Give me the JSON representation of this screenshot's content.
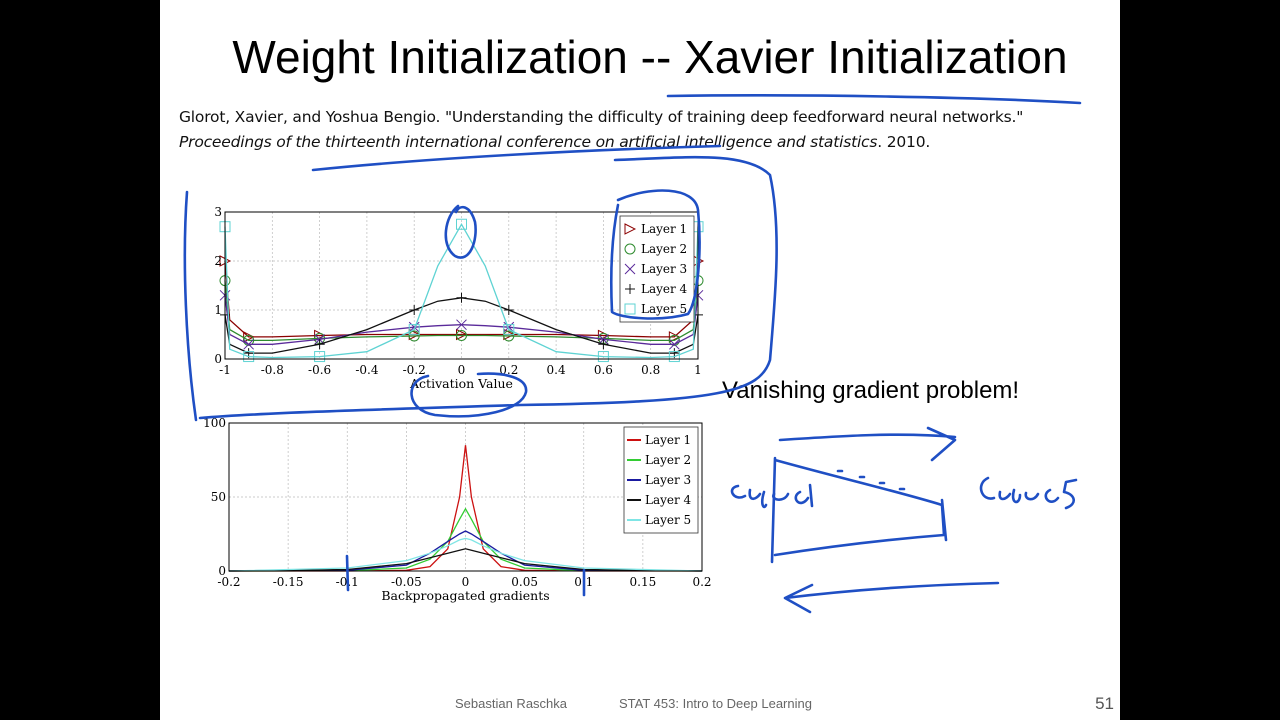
{
  "title": "Weight Initialization -- Xavier Initialization",
  "citation": {
    "line1": "Glorot, Xavier, and Yoshua Bengio. \"Understanding the difficulty of training deep feedforward neural networks.\"",
    "venue": "Proceedings of the thirteenth international conference on artificial intelligence and statistics",
    "year": ". 2010."
  },
  "annotations": {
    "vanishing": "Vanishing gradient problem!",
    "handwritten": [
      "Layer 1",
      "Layer 5"
    ]
  },
  "footer": {
    "author": "Sebastian Raschka",
    "course": "STAT 453: Intro to Deep Learning",
    "page": "51"
  },
  "chart_data": [
    {
      "type": "line",
      "xlabel": "Activation Value",
      "ylabel": "",
      "xlim": [
        -1,
        1
      ],
      "ylim": [
        0,
        3
      ],
      "x_ticks": [
        "-1",
        "-0.8",
        "-0.6",
        "-0.4",
        "-0.2",
        "0",
        "0.2",
        "0.4",
        "0.6",
        "0.8",
        "1"
      ],
      "y_ticks": [
        "0",
        "1",
        "2",
        "3"
      ],
      "grid": true,
      "legend": "top-right",
      "x": [
        -1,
        -0.98,
        -0.9,
        -0.8,
        -0.6,
        -0.4,
        -0.2,
        -0.1,
        0,
        0.1,
        0.2,
        0.4,
        0.6,
        0.8,
        0.9,
        0.98,
        1
      ],
      "series": [
        {
          "name": "Layer 1",
          "color": "#8b0000",
          "marker": "triangle-right",
          "values": [
            2.0,
            0.8,
            0.45,
            0.45,
            0.48,
            0.5,
            0.5,
            0.5,
            0.5,
            0.5,
            0.5,
            0.5,
            0.48,
            0.45,
            0.45,
            0.8,
            2.0
          ]
        },
        {
          "name": "Layer 2",
          "color": "#2e8b2e",
          "marker": "circle",
          "values": [
            1.6,
            0.6,
            0.38,
            0.38,
            0.42,
            0.45,
            0.47,
            0.48,
            0.48,
            0.48,
            0.47,
            0.45,
            0.42,
            0.38,
            0.38,
            0.6,
            1.6
          ]
        },
        {
          "name": "Layer 3",
          "color": "#5a2a9a",
          "marker": "x",
          "values": [
            1.3,
            0.5,
            0.3,
            0.3,
            0.4,
            0.55,
            0.65,
            0.68,
            0.7,
            0.68,
            0.65,
            0.55,
            0.4,
            0.3,
            0.3,
            0.5,
            1.3
          ]
        },
        {
          "name": "Layer 4",
          "color": "#111111",
          "marker": "plus",
          "values": [
            0.9,
            0.3,
            0.12,
            0.12,
            0.3,
            0.6,
            1.0,
            1.18,
            1.25,
            1.18,
            1.0,
            0.6,
            0.3,
            0.12,
            0.12,
            0.3,
            0.9
          ]
        },
        {
          "name": "Layer 5",
          "color": "#5fd3d3",
          "marker": "square",
          "values": [
            2.7,
            0.2,
            0.05,
            0.03,
            0.05,
            0.15,
            0.6,
            1.9,
            2.75,
            1.9,
            0.6,
            0.15,
            0.05,
            0.03,
            0.05,
            0.2,
            2.7
          ]
        }
      ]
    },
    {
      "type": "line",
      "xlabel": "Backpropagated gradients",
      "ylabel": "",
      "xlim": [
        -0.2,
        0.2
      ],
      "ylim": [
        0,
        100
      ],
      "x_ticks": [
        "-0.2",
        "-0.15",
        "-0.1",
        "-0.05",
        "0",
        "0.05",
        "0.1",
        "0.15",
        "0.2"
      ],
      "y_ticks": [
        "0",
        "50",
        "100"
      ],
      "grid": true,
      "legend": "top-right",
      "x": [
        -0.2,
        -0.1,
        -0.05,
        -0.03,
        -0.015,
        -0.005,
        0,
        0.005,
        0.015,
        0.03,
        0.05,
        0.1,
        0.2
      ],
      "series": [
        {
          "name": "Layer 1",
          "color": "#cc1111",
          "values": [
            0,
            0,
            0.5,
            3,
            15,
            50,
            85,
            50,
            15,
            3,
            0.5,
            0,
            0
          ]
        },
        {
          "name": "Layer 2",
          "color": "#33cc33",
          "values": [
            0,
            0.2,
            2,
            8,
            20,
            35,
            42,
            35,
            20,
            8,
            2,
            0.2,
            0
          ]
        },
        {
          "name": "Layer 3",
          "color": "#1a1aa0",
          "values": [
            0,
            0.5,
            4,
            12,
            20,
            25,
            27,
            25,
            20,
            12,
            4,
            0.5,
            0
          ]
        },
        {
          "name": "Layer 4",
          "color": "#111111",
          "values": [
            0,
            1,
            5,
            9,
            12,
            14,
            15,
            14,
            12,
            9,
            5,
            1,
            0
          ]
        },
        {
          "name": "Layer 5",
          "color": "#7fe5e5",
          "values": [
            0,
            2,
            7,
            12,
            17,
            21,
            22,
            21,
            17,
            12,
            7,
            2,
            0
          ]
        }
      ]
    }
  ]
}
